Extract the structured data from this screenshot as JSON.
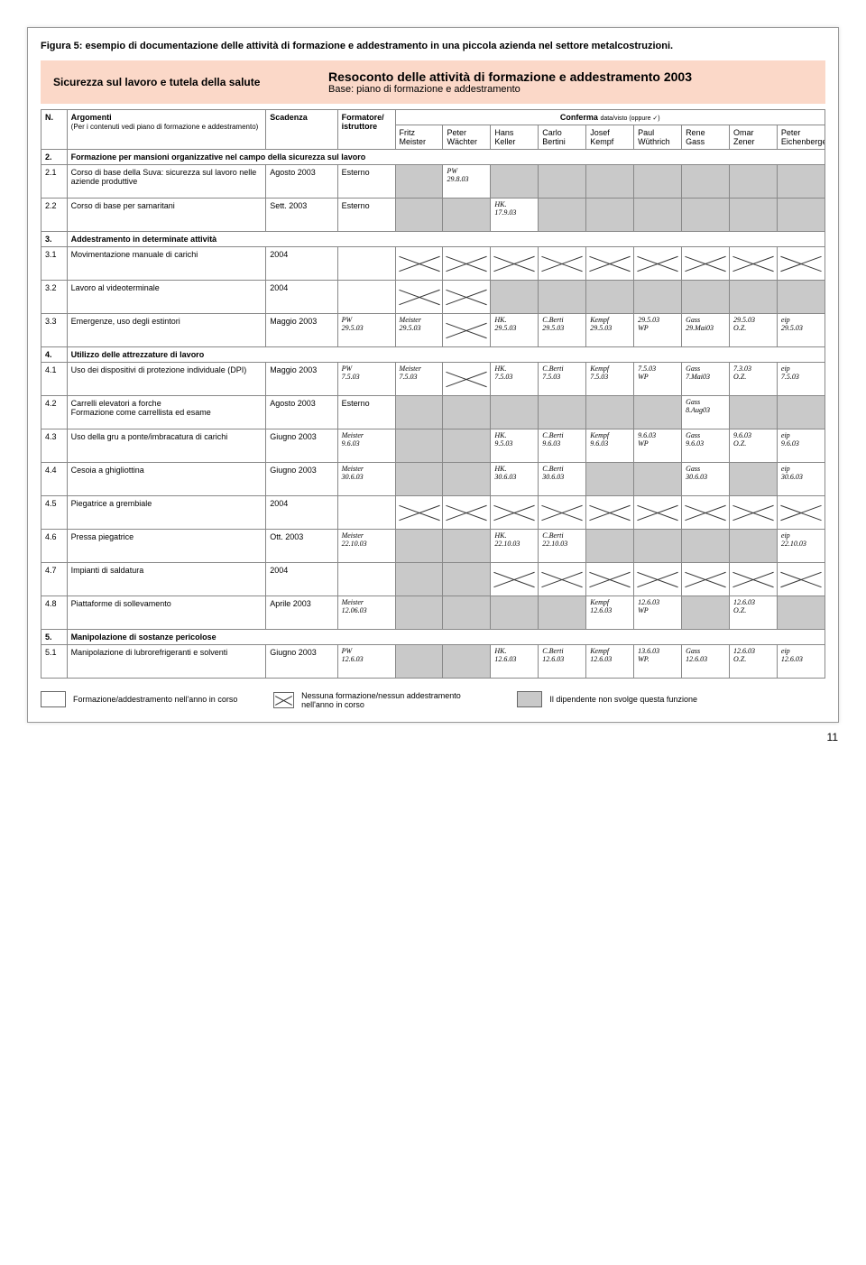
{
  "caption": "Figura 5: esempio di documentazione delle attività di formazione e addestramento in una piccola azienda nel settore metalcostruzioni.",
  "header": {
    "left": "Sicurezza sul lavoro e tutela della salute",
    "titleMain": "Resoconto delle attività di formazione e addestramento 2003",
    "titleSub": "Base: piano di formazione e addestramento"
  },
  "columns": {
    "n": "N.",
    "arg": "Argomenti",
    "argSub": "(Per i contenuti vedi piano di formazione e addestramento)",
    "sca": "Scadenza",
    "for": "Formatore/\nistruttore",
    "conf": "Conferma",
    "confSub": "data/visto (oppure ✓)",
    "people": [
      "Fritz\nMeister",
      "Peter\nWächter",
      "Hans\nKeller",
      "Carlo\nBertini",
      "Josef\nKempf",
      "Paul\nWüthrich",
      "Rene\nGass",
      "Omar\nZener",
      "Peter\nEichenberger"
    ]
  },
  "sections": [
    {
      "n": "2.",
      "title": "Formazione per mansioni organizzative nel campo della sicurezza sul lavoro",
      "rows": [
        {
          "n": "2.1",
          "arg": "Corso di base della Suva: sicurezza sul lavoro nelle aziende produttive",
          "sca": "Agosto 2003",
          "for": "Esterno",
          "cells": [
            "na",
            {
              "hand": "PW\n29.8.03"
            },
            "na",
            "na",
            "na",
            "na",
            "na",
            "na",
            "na"
          ]
        },
        {
          "n": "2.2",
          "arg": "Corso di base per samaritani",
          "sca": "Sett. 2003",
          "for": "Esterno",
          "cells": [
            "na",
            "na",
            {
              "hand": "HK.\n17.9.03"
            },
            "na",
            "na",
            "na",
            "na",
            "na",
            "na"
          ]
        }
      ]
    },
    {
      "n": "3.",
      "title": "Addestramento in determinate attività",
      "rows": [
        {
          "n": "3.1",
          "arg": "Movimentazione manuale di carichi",
          "sca": "2004",
          "for": "",
          "cells": [
            "x",
            "x",
            "x",
            "x",
            "x",
            "x",
            "x",
            "x",
            "x"
          ]
        },
        {
          "n": "3.2",
          "arg": "Lavoro al videoterminale",
          "sca": "2004",
          "for": "",
          "cells": [
            "x",
            "x",
            "na",
            "na",
            "na",
            "na",
            "na",
            "na",
            "na"
          ]
        },
        {
          "n": "3.3",
          "arg": "Emergenze, uso degli estintori",
          "sca": "Maggio 2003",
          "for": {
            "hand": "PW\n29.5.03"
          },
          "cells": [
            {
              "hand": "Meister\n29.5.03"
            },
            "x",
            {
              "hand": "HK.\n29.5.03"
            },
            {
              "hand": "C.Berti\n29.5.03"
            },
            {
              "hand": "Kempf\n29.5.03"
            },
            {
              "hand": "29.5.03\nWP"
            },
            {
              "hand": "Gass\n29.Mai03"
            },
            {
              "hand": "29.5.03\nO.Z."
            },
            {
              "hand": "eip\n29.5.03"
            }
          ]
        }
      ]
    },
    {
      "n": "4.",
      "title": "Utilizzo delle attrezzature di lavoro",
      "rows": [
        {
          "n": "4.1",
          "arg": "Uso dei dispositivi di protezione individuale (DPI)",
          "sca": "Maggio 2003",
          "for": {
            "hand": "PW\n7.5.03"
          },
          "cells": [
            {
              "hand": "Meister\n7.5.03"
            },
            "x",
            {
              "hand": "HK.\n7.5.03"
            },
            {
              "hand": "C.Berti\n7.5.03"
            },
            {
              "hand": "Kempf\n7.5.03"
            },
            {
              "hand": "7.5.03\nWP"
            },
            {
              "hand": "Gass\n7.Mai03"
            },
            {
              "hand": "7.3.03\nO.Z."
            },
            {
              "hand": "eip\n7.5.03"
            }
          ]
        },
        {
          "n": "4.2",
          "arg": "Carrelli elevatori a forche\nFormazione come carrellista ed esame",
          "sca": "Agosto 2003",
          "for": "Esterno",
          "cells": [
            "na",
            "na",
            "na",
            "na",
            "na",
            "na",
            {
              "hand": "Gass\n8.Aug03"
            },
            "na",
            "na"
          ]
        },
        {
          "n": "4.3",
          "arg": "Uso della gru a ponte/imbracatura di carichi",
          "sca": "Giugno 2003",
          "for": {
            "hand": "Meister\n9.6.03"
          },
          "cells": [
            "na",
            "na",
            {
              "hand": "HK.\n9.5.03"
            },
            {
              "hand": "C.Berti\n9.6.03"
            },
            {
              "hand": "Kempf\n9.6.03"
            },
            {
              "hand": "9.6.03\nWP"
            },
            {
              "hand": "Gass\n9.6.03"
            },
            {
              "hand": "9.6.03\nO.Z."
            },
            {
              "hand": "eip\n9.6.03"
            }
          ]
        },
        {
          "n": "4.4",
          "arg": "Cesoia a ghigliottina",
          "sca": "Giugno 2003",
          "for": {
            "hand": "Meister\n30.6.03"
          },
          "cells": [
            "na",
            "na",
            {
              "hand": "HK.\n30.6.03"
            },
            {
              "hand": "C.Berti\n30.6.03"
            },
            "na",
            "na",
            {
              "hand": "Gass\n30.6.03"
            },
            "na",
            {
              "hand": "eip\n30.6.03"
            }
          ]
        },
        {
          "n": "4.5",
          "arg": "Piegatrice a grembiale",
          "sca": "2004",
          "for": "",
          "cells": [
            "x",
            "x",
            "x",
            "x",
            "x",
            "x",
            "x",
            "x",
            "x"
          ]
        },
        {
          "n": "4.6",
          "arg": "Pressa piegatrice",
          "sca": "Ott. 2003",
          "for": {
            "hand": "Meister\n22.10.03"
          },
          "cells": [
            "na",
            "na",
            {
              "hand": "HK.\n22.10.03"
            },
            {
              "hand": "C.Berti\n22.10.03"
            },
            "na",
            "na",
            "na",
            "na",
            {
              "hand": "eip\n22.10.03"
            }
          ]
        },
        {
          "n": "4.7",
          "arg": "Impianti di saldatura",
          "sca": "2004",
          "for": "",
          "cells": [
            "na",
            "na",
            "x",
            "x",
            "x",
            "x",
            "x",
            "x",
            "x"
          ]
        },
        {
          "n": "4.8",
          "arg": "Piattaforme di sollevamento",
          "sca": "Aprile 2003",
          "for": {
            "hand": "Meister\n12.06.03"
          },
          "cells": [
            "na",
            "na",
            "na",
            "na",
            {
              "hand": "Kempf\n12.6.03"
            },
            {
              "hand": "12.6.03\nWP"
            },
            "na",
            {
              "hand": "12.6.03\nO.Z."
            },
            "na"
          ]
        }
      ]
    },
    {
      "n": "5.",
      "title": "Manipolazione di sostanze pericolose",
      "rows": [
        {
          "n": "5.1",
          "arg": "Manipolazione di lubrorefrigeranti e solventi",
          "sca": "Giugno 2003",
          "for": {
            "hand": "PW\n12.6.03"
          },
          "cells": [
            "na",
            "na",
            {
              "hand": "HK.\n12.6.03"
            },
            {
              "hand": "C.Berti\n12.6.03"
            },
            {
              "hand": "Kempf\n12.6.03"
            },
            {
              "hand": "13.6.03\nWP."
            },
            {
              "hand": "Gass\n12.6.03"
            },
            {
              "hand": "12.6.03\nO.Z."
            },
            {
              "hand": "eip\n12.6.03"
            }
          ]
        }
      ]
    }
  ],
  "legend": {
    "a": "Formazione/addestramento nell'anno in corso",
    "b": "Nessuna formazione/nessun addestramento nell'anno in corso",
    "c": "Il dipendente non svolge questa funzione"
  },
  "pageNum": "11"
}
